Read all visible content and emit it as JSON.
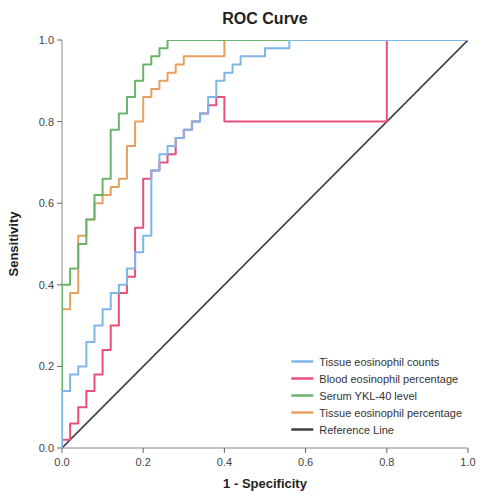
{
  "chart_data": {
    "type": "line",
    "title": "ROC Curve",
    "xlabel": "1 - Specificity",
    "ylabel": "Sensitivity",
    "xlim": [
      0.0,
      1.0
    ],
    "ylim": [
      0.0,
      1.0
    ],
    "xticks": [
      {
        "value": 0.0,
        "label": "0.0"
      },
      0.2,
      0.4,
      0.6,
      0.8,
      {
        "value": 1.0,
        "label": "1.0"
      }
    ],
    "yticks": [
      {
        "value": 0.0,
        "label": "0.0"
      },
      0.2,
      0.4,
      0.6,
      0.8,
      {
        "value": 1.0,
        "label": "1.0"
      }
    ],
    "grid": false,
    "legend": "lower right",
    "series": [
      {
        "name": "Tissue eosinophil counts",
        "color": "#7EB6E8",
        "x": [
          0.0,
          0.0,
          0.02,
          0.02,
          0.04,
          0.04,
          0.06,
          0.06,
          0.08,
          0.08,
          0.1,
          0.1,
          0.12,
          0.12,
          0.14,
          0.14,
          0.16,
          0.16,
          0.18,
          0.18,
          0.2,
          0.2,
          0.22,
          0.22,
          0.24,
          0.24,
          0.26,
          0.26,
          0.28,
          0.28,
          0.3,
          0.3,
          0.32,
          0.32,
          0.34,
          0.34,
          0.36,
          0.36,
          0.38,
          0.38,
          0.4,
          0.4,
          0.42,
          0.42,
          0.44,
          0.44,
          0.5,
          0.5,
          0.56,
          0.56,
          0.6,
          0.6,
          0.7,
          0.7,
          0.8,
          0.8,
          1.0
        ],
        "values": [
          0.0,
          0.14,
          0.14,
          0.18,
          0.18,
          0.2,
          0.2,
          0.26,
          0.26,
          0.3,
          0.3,
          0.34,
          0.34,
          0.38,
          0.38,
          0.4,
          0.4,
          0.44,
          0.44,
          0.48,
          0.48,
          0.52,
          0.52,
          0.68,
          0.68,
          0.72,
          0.72,
          0.74,
          0.74,
          0.76,
          0.76,
          0.78,
          0.78,
          0.8,
          0.8,
          0.82,
          0.82,
          0.86,
          0.86,
          0.9,
          0.9,
          0.92,
          0.92,
          0.94,
          0.94,
          0.96,
          0.96,
          0.98,
          0.98,
          1.0,
          1.0,
          1.0,
          1.0,
          1.0,
          1.0,
          1.0,
          1.0
        ]
      },
      {
        "name": "Blood eosinophil percentage",
        "color": "#E8507A",
        "x": [
          0.0,
          0.0,
          0.02,
          0.02,
          0.04,
          0.04,
          0.06,
          0.06,
          0.08,
          0.08,
          0.1,
          0.1,
          0.12,
          0.12,
          0.14,
          0.14,
          0.16,
          0.16,
          0.18,
          0.18,
          0.2,
          0.2,
          0.22,
          0.22,
          0.24,
          0.24,
          0.26,
          0.26,
          0.28,
          0.28,
          0.3,
          0.3,
          0.32,
          0.32,
          0.34,
          0.34,
          0.36,
          0.36,
          0.38,
          0.38,
          0.4,
          0.4,
          0.44,
          0.44,
          0.5,
          0.5,
          0.6,
          0.6,
          0.7,
          0.7,
          0.8,
          0.8,
          0.9,
          0.9,
          1.0
        ],
        "values": [
          0.0,
          0.02,
          0.02,
          0.06,
          0.06,
          0.1,
          0.1,
          0.14,
          0.14,
          0.18,
          0.18,
          0.24,
          0.24,
          0.3,
          0.3,
          0.38,
          0.38,
          0.42,
          0.42,
          0.54,
          0.54,
          0.66,
          0.66,
          0.68,
          0.68,
          0.7,
          0.7,
          0.72,
          0.72,
          0.76,
          0.76,
          0.78,
          0.78,
          0.8,
          0.8,
          0.82,
          0.82,
          0.84,
          0.84,
          0.86,
          0.86,
          0.8,
          0.8,
          0.8,
          0.8,
          0.8,
          0.8,
          0.8,
          0.8,
          0.8,
          0.8,
          1.0,
          1.0,
          1.0,
          1.0
        ]
      },
      {
        "name": "Serum YKL-40 level",
        "color": "#6AB46A",
        "x": [
          0.0,
          0.0,
          0.02,
          0.02,
          0.04,
          0.04,
          0.06,
          0.06,
          0.08,
          0.08,
          0.1,
          0.1,
          0.12,
          0.12,
          0.14,
          0.14,
          0.16,
          0.16,
          0.18,
          0.18,
          0.2,
          0.2,
          0.22,
          0.22,
          0.24,
          0.24,
          0.26,
          0.26,
          0.28,
          0.28,
          0.32,
          0.32,
          0.4,
          0.4,
          0.5,
          0.5,
          1.0
        ],
        "values": [
          0.0,
          0.4,
          0.4,
          0.44,
          0.44,
          0.5,
          0.5,
          0.56,
          0.56,
          0.62,
          0.62,
          0.66,
          0.66,
          0.78,
          0.78,
          0.82,
          0.82,
          0.86,
          0.86,
          0.9,
          0.9,
          0.94,
          0.94,
          0.96,
          0.96,
          0.98,
          0.98,
          1.0,
          1.0,
          1.0,
          1.0,
          1.0,
          1.0,
          1.0,
          1.0,
          1.0,
          1.0
        ]
      },
      {
        "name": "Tissue eosinophil percentage",
        "color": "#E8A060",
        "x": [
          0.0,
          0.0,
          0.02,
          0.02,
          0.04,
          0.04,
          0.06,
          0.06,
          0.08,
          0.08,
          0.1,
          0.1,
          0.12,
          0.12,
          0.14,
          0.14,
          0.16,
          0.16,
          0.18,
          0.18,
          0.2,
          0.2,
          0.22,
          0.22,
          0.24,
          0.24,
          0.26,
          0.26,
          0.28,
          0.28,
          0.3,
          0.3,
          0.4,
          0.4,
          0.5,
          0.5,
          0.6,
          0.6,
          1.0
        ],
        "values": [
          0.0,
          0.34,
          0.34,
          0.38,
          0.38,
          0.52,
          0.52,
          0.56,
          0.56,
          0.6,
          0.6,
          0.62,
          0.62,
          0.64,
          0.64,
          0.66,
          0.66,
          0.74,
          0.74,
          0.8,
          0.8,
          0.86,
          0.86,
          0.88,
          0.88,
          0.9,
          0.9,
          0.92,
          0.92,
          0.94,
          0.94,
          0.96,
          0.96,
          1.0,
          1.0,
          1.0,
          1.0,
          1.0,
          1.0
        ]
      },
      {
        "name": "Reference Line",
        "color": "#404040",
        "x": [
          0,
          1
        ],
        "values": [
          0,
          1
        ]
      }
    ]
  }
}
